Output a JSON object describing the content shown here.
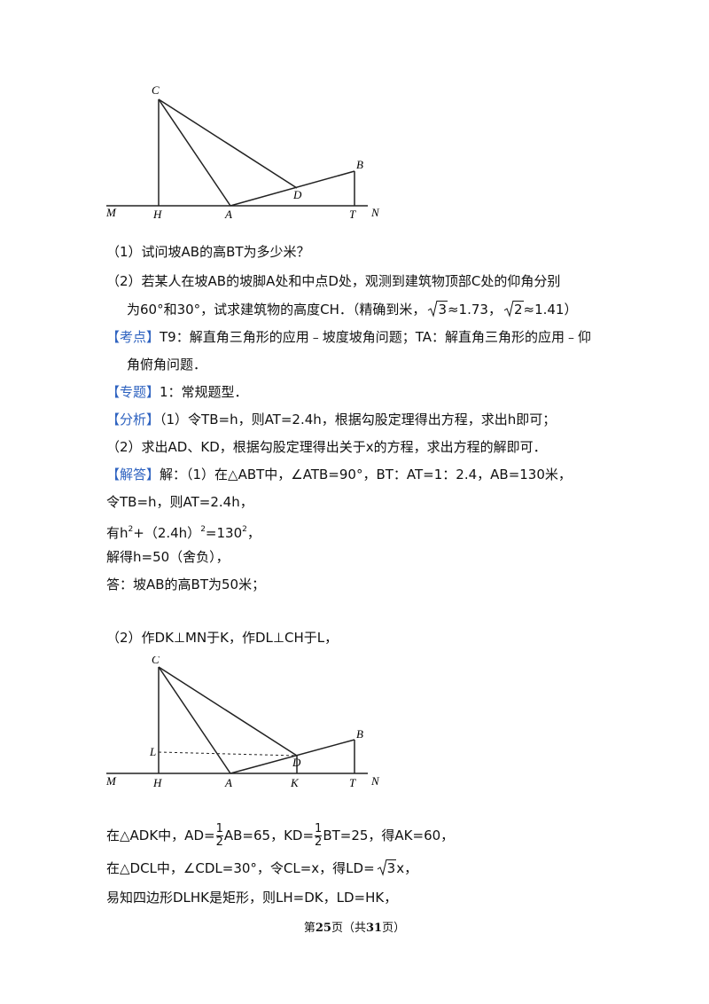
{
  "figure1": {
    "labels": [
      "C",
      "B",
      "D",
      "M",
      "H",
      "A",
      "T",
      "N"
    ]
  },
  "q1": "（1）试问坡AB的高BT为多少米？",
  "q2": {
    "line1": "（2）若某人在坡AB的坡脚A处和中点D处，观测到建筑物顶部C处的仰角分别",
    "line2": [
      "为60°和30°，试求建筑物的高度CH．（精确到米，",
      "3",
      "≈1.73，",
      "2",
      "≈1.41）"
    ]
  },
  "kaodian": {
    "tag": "【考点】",
    "text": "T9：解直角三角形的应用﹣坡度坡角问题；TA：解直角三角形的应用﹣仰",
    "cont": "角俯角问题．"
  },
  "zhuanti": {
    "tag": "【专题】",
    "text": "1：常规题型．"
  },
  "fenxi": {
    "tag": "【分析】",
    "text": "（1）令TB=h，则AT=2.4h，根据勾股定理得出方程，求出h即可；",
    "cont": "（2）求出AD、KD，根据勾股定理得出关于x的方程，求出方程的解即可．"
  },
  "jieda": {
    "tag": "【解答】",
    "text": "解：（1）在△ABT中，∠ATB=90°，BT：AT=1：2.4，AB=130米，",
    "lines": [
      "令TB=h，则AT=2.4h，",
      [
        "有h",
        "2",
        "+（2.4h）",
        "2",
        "=130",
        "2",
        "，"
      ],
      "解得h=50（舍负），",
      "答：坡AB的高BT为50米；"
    ]
  },
  "part2": {
    "intro": "（2）作DK⊥MN于K，作DL⊥CH于L，",
    "line1": [
      "在△ADK中，AD=",
      "1",
      "2",
      "AB=65，KD=",
      "1",
      "2",
      "BT=25，得AK=60，"
    ],
    "line2": [
      "在△DCL中，∠CDL=30°，令CL=x，得LD=",
      "3",
      "x，"
    ],
    "line3": "易知四边形DLHK是矩形，则LH=DK，LD=HK，"
  },
  "figure2": {
    "labels": [
      "C",
      "B",
      "L",
      "D",
      "M",
      "H",
      "A",
      "K",
      "T",
      "N"
    ]
  },
  "footer": [
    "第",
    "25",
    "页（共",
    "31",
    "页）"
  ]
}
